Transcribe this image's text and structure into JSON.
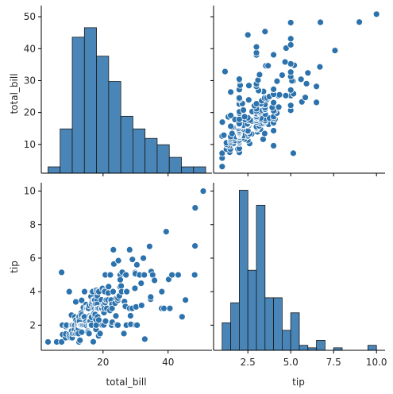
{
  "chart_data": {
    "type": "pairplot",
    "colors": {
      "fill": "#4a85b8",
      "point": "#2c72ad",
      "edge": "#ffffff",
      "bar_edge": "#1a1a1a"
    },
    "grid": false,
    "variables": [
      "total_bill",
      "tip"
    ],
    "ticks": {
      "total_bill": {
        "values": [
          10,
          20,
          30,
          40,
          50
        ],
        "labels": [
          "10",
          "20",
          "30",
          "40",
          "50"
        ],
        "x_values": [
          20,
          40
        ],
        "x_labels": [
          "20",
          "40"
        ]
      },
      "tip": {
        "values": [
          2,
          4,
          6,
          8,
          10
        ],
        "labels": [
          "2",
          "4",
          "6",
          "8",
          "10"
        ],
        "x_values": [
          2.5,
          5.0,
          7.5,
          10.0
        ],
        "x_labels": [
          "2.5",
          "5.0",
          "7.5",
          "10.0"
        ]
      }
    },
    "xlabels": {
      "total_bill": "total_bill",
      "tip": "tip"
    },
    "ylabels": {
      "total_bill": "total_bill",
      "tip": "tip"
    },
    "ranges": {
      "total_bill": [
        1.0,
        53.5
      ],
      "tip": [
        0.5,
        10.5
      ]
    },
    "hist_total_bill": {
      "bin_edges": [
        3.07,
        6.8,
        10.53,
        14.26,
        17.99,
        21.72,
        25.45,
        29.18,
        32.91,
        36.64,
        40.37,
        44.1,
        47.83,
        51.56
      ],
      "counts": [
        2,
        14,
        43,
        46,
        37,
        29,
        18,
        14,
        11,
        9,
        5,
        2,
        2
      ],
      "count_range": [
        0,
        53
      ]
    },
    "hist_tip": {
      "bin_edges": [
        1.0,
        1.5,
        2.0,
        2.5,
        3.0,
        3.5,
        4.0,
        4.5,
        5.0,
        5.5,
        6.0,
        6.5,
        7.0,
        7.5,
        8.0,
        8.5,
        9.0,
        9.5,
        10.0
      ],
      "counts": [
        11,
        19,
        64,
        32,
        58,
        21,
        21,
        8,
        15,
        2,
        1,
        4,
        0,
        1,
        0,
        0,
        0,
        2
      ],
      "count_range": [
        0,
        67
      ]
    },
    "scatter": [
      [
        3.07,
        1.0
      ],
      [
        5.75,
        1.0
      ],
      [
        7.25,
        1.0
      ],
      [
        7.25,
        5.15
      ],
      [
        7.51,
        2.0
      ],
      [
        7.56,
        1.44
      ],
      [
        8.51,
        1.25
      ],
      [
        8.52,
        1.48
      ],
      [
        8.58,
        1.92
      ],
      [
        8.77,
        2.0
      ],
      [
        9.55,
        1.45
      ],
      [
        9.6,
        4.0
      ],
      [
        9.68,
        1.32
      ],
      [
        10.07,
        1.25
      ],
      [
        10.27,
        1.71
      ],
      [
        10.29,
        2.6
      ],
      [
        10.33,
        1.67
      ],
      [
        10.34,
        1.66
      ],
      [
        10.34,
        2.0
      ],
      [
        10.51,
        1.25
      ],
      [
        10.63,
        2.0
      ],
      [
        10.65,
        1.5
      ],
      [
        11.02,
        1.98
      ],
      [
        11.17,
        1.5
      ],
      [
        11.24,
        1.76
      ],
      [
        11.35,
        2.5
      ],
      [
        11.38,
        2.0
      ],
      [
        11.59,
        1.5
      ],
      [
        11.61,
        3.39
      ],
      [
        11.69,
        2.31
      ],
      [
        11.87,
        1.63
      ],
      [
        12.02,
        1.97
      ],
      [
        12.03,
        1.5
      ],
      [
        12.16,
        2.2
      ],
      [
        12.26,
        2.0
      ],
      [
        12.43,
        1.8
      ],
      [
        12.46,
        1.5
      ],
      [
        12.54,
        2.5
      ],
      [
        12.6,
        1.0
      ],
      [
        12.66,
        2.5
      ],
      [
        12.69,
        2.0
      ],
      [
        12.74,
        2.01
      ],
      [
        12.76,
        2.23
      ],
      [
        12.9,
        1.1
      ],
      [
        13.0,
        2.0
      ],
      [
        13.13,
        2.0
      ],
      [
        13.27,
        2.5
      ],
      [
        13.28,
        2.72
      ],
      [
        13.37,
        2.0
      ],
      [
        13.39,
        2.61
      ],
      [
        13.42,
        3.48
      ],
      [
        13.42,
        1.58
      ],
      [
        13.51,
        2.0
      ],
      [
        13.81,
        2.0
      ],
      [
        13.94,
        3.06
      ],
      [
        14.07,
        2.5
      ],
      [
        14.15,
        2.0
      ],
      [
        14.26,
        2.5
      ],
      [
        14.31,
        4.0
      ],
      [
        14.52,
        2.0
      ],
      [
        14.73,
        2.2
      ],
      [
        14.78,
        3.23
      ],
      [
        14.83,
        3.02
      ],
      [
        15.01,
        2.09
      ],
      [
        15.04,
        1.96
      ],
      [
        15.06,
        3.0
      ],
      [
        15.36,
        1.64
      ],
      [
        15.38,
        3.0
      ],
      [
        15.42,
        1.57
      ],
      [
        15.48,
        2.02
      ],
      [
        15.53,
        3.0
      ],
      [
        15.69,
        1.5
      ],
      [
        15.77,
        2.23
      ],
      [
        15.81,
        3.16
      ],
      [
        15.95,
        2.55
      ],
      [
        15.98,
        2.03
      ],
      [
        16.0,
        2.0
      ],
      [
        16.04,
        2.24
      ],
      [
        16.21,
        2.0
      ],
      [
        16.27,
        2.5
      ],
      [
        16.29,
        3.71
      ],
      [
        16.31,
        2.0
      ],
      [
        16.4,
        2.5
      ],
      [
        16.45,
        2.47
      ],
      [
        16.47,
        3.23
      ],
      [
        16.49,
        2.0
      ],
      [
        16.58,
        4.0
      ],
      [
        16.66,
        3.4
      ],
      [
        16.82,
        4.0
      ],
      [
        16.93,
        3.07
      ],
      [
        16.97,
        3.5
      ],
      [
        16.99,
        1.01
      ],
      [
        17.07,
        3.0
      ],
      [
        17.26,
        2.74
      ],
      [
        17.29,
        2.71
      ],
      [
        17.31,
        3.5
      ],
      [
        17.46,
        2.54
      ],
      [
        17.47,
        3.5
      ],
      [
        17.51,
        3.0
      ],
      [
        17.59,
        2.64
      ],
      [
        17.78,
        3.27
      ],
      [
        17.81,
        2.34
      ],
      [
        17.82,
        1.75
      ],
      [
        17.89,
        2.0
      ],
      [
        17.92,
        4.08
      ],
      [
        18.04,
        3.0
      ],
      [
        18.15,
        3.5
      ],
      [
        18.24,
        3.76
      ],
      [
        18.26,
        3.25
      ],
      [
        18.28,
        4.0
      ],
      [
        18.29,
        3.0
      ],
      [
        18.35,
        2.5
      ],
      [
        18.43,
        3.0
      ],
      [
        18.64,
        1.36
      ],
      [
        18.69,
        2.31
      ],
      [
        18.71,
        4.0
      ],
      [
        18.78,
        3.0
      ],
      [
        19.08,
        1.5
      ],
      [
        19.44,
        3.0
      ],
      [
        19.49,
        3.51
      ],
      [
        19.65,
        3.0
      ],
      [
        19.77,
        2.0
      ],
      [
        19.81,
        4.19
      ],
      [
        19.82,
        3.18
      ],
      [
        20.08,
        3.15
      ],
      [
        20.23,
        2.01
      ],
      [
        20.27,
        2.83
      ],
      [
        20.29,
        2.75
      ],
      [
        20.29,
        3.21
      ],
      [
        20.45,
        3.0
      ],
      [
        20.49,
        4.06
      ],
      [
        20.53,
        4.0
      ],
      [
        20.65,
        3.35
      ],
      [
        20.69,
        5.0
      ],
      [
        20.76,
        2.24
      ],
      [
        20.9,
        3.5
      ],
      [
        21.01,
        3.5
      ],
      [
        21.16,
        3.0
      ],
      [
        21.5,
        3.5
      ],
      [
        21.58,
        3.92
      ],
      [
        21.7,
        4.3
      ],
      [
        22.12,
        2.88
      ],
      [
        22.23,
        5.0
      ],
      [
        22.42,
        3.48
      ],
      [
        22.49,
        3.5
      ],
      [
        22.67,
        2.0
      ],
      [
        22.75,
        3.25
      ],
      [
        22.76,
        3.0
      ],
      [
        22.82,
        2.18
      ],
      [
        23.1,
        4.0
      ],
      [
        23.17,
        6.5
      ],
      [
        23.33,
        5.65
      ],
      [
        23.68,
        3.31
      ],
      [
        23.95,
        2.55
      ],
      [
        24.01,
        2.0
      ],
      [
        24.06,
        3.6
      ],
      [
        24.27,
        2.03
      ],
      [
        24.52,
        3.48
      ],
      [
        24.55,
        2.0
      ],
      [
        24.59,
        3.61
      ],
      [
        24.71,
        5.85
      ],
      [
        25.0,
        3.75
      ],
      [
        25.21,
        4.29
      ],
      [
        25.28,
        5.0
      ],
      [
        25.29,
        4.71
      ],
      [
        25.56,
        4.34
      ],
      [
        25.71,
        4.0
      ],
      [
        25.89,
        5.16
      ],
      [
        26.41,
        1.5
      ],
      [
        26.59,
        3.41
      ],
      [
        26.86,
        3.14
      ],
      [
        26.88,
        3.12
      ],
      [
        27.05,
        5.0
      ],
      [
        27.18,
        2.0
      ],
      [
        27.2,
        4.0
      ],
      [
        27.28,
        4.0
      ],
      [
        28.15,
        3.0
      ],
      [
        28.17,
        6.5
      ],
      [
        28.44,
        2.56
      ],
      [
        28.55,
        2.05
      ],
      [
        28.97,
        3.0
      ],
      [
        29.03,
        5.92
      ],
      [
        29.8,
        4.2
      ],
      [
        29.85,
        5.14
      ],
      [
        29.93,
        5.07
      ],
      [
        30.06,
        2.0
      ],
      [
        30.14,
        3.09
      ],
      [
        30.4,
        5.6
      ],
      [
        30.46,
        2.0
      ],
      [
        31.27,
        5.0
      ],
      [
        31.71,
        4.5
      ],
      [
        31.85,
        3.18
      ],
      [
        32.4,
        6.0
      ],
      [
        32.68,
        5.0
      ],
      [
        32.83,
        1.17
      ],
      [
        34.3,
        6.7
      ],
      [
        34.63,
        3.55
      ],
      [
        34.65,
        3.68
      ],
      [
        34.81,
        5.2
      ],
      [
        35.26,
        5.0
      ],
      [
        35.83,
        4.67
      ],
      [
        38.01,
        3.0
      ],
      [
        38.07,
        4.0
      ],
      [
        38.73,
        3.0
      ],
      [
        39.42,
        7.58
      ],
      [
        40.17,
        4.73
      ],
      [
        40.55,
        3.0
      ],
      [
        41.19,
        5.0
      ],
      [
        43.11,
        5.0
      ],
      [
        44.3,
        2.5
      ],
      [
        45.35,
        3.5
      ],
      [
        48.17,
        5.0
      ],
      [
        48.27,
        6.73
      ],
      [
        48.33,
        9.0
      ],
      [
        50.81,
        10.0
      ]
    ]
  }
}
